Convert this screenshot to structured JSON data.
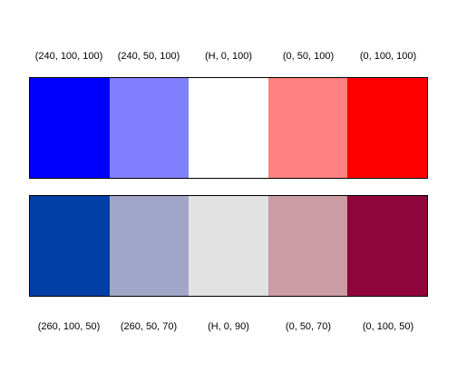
{
  "palettes": [
    {
      "labels": [
        "(240, 100, 100)",
        "(240, 50, 100)",
        "(H, 0, 100)",
        "(0, 50, 100)",
        "(0, 100, 100)"
      ],
      "colors": [
        "#0000FF",
        "#8080FF",
        "#FFFFFF",
        "#FF8080",
        "#FF0000"
      ]
    },
    {
      "labels": [
        "(260, 100, 50)",
        "(260, 50, 70)",
        "(H, 0, 90)",
        "(0, 50, 70)",
        "(0, 100, 50)"
      ],
      "colors": [
        "#023FA5",
        "#A1A6C8",
        "#E2E2E2",
        "#CA9CA4",
        "#8E063B"
      ]
    }
  ]
}
